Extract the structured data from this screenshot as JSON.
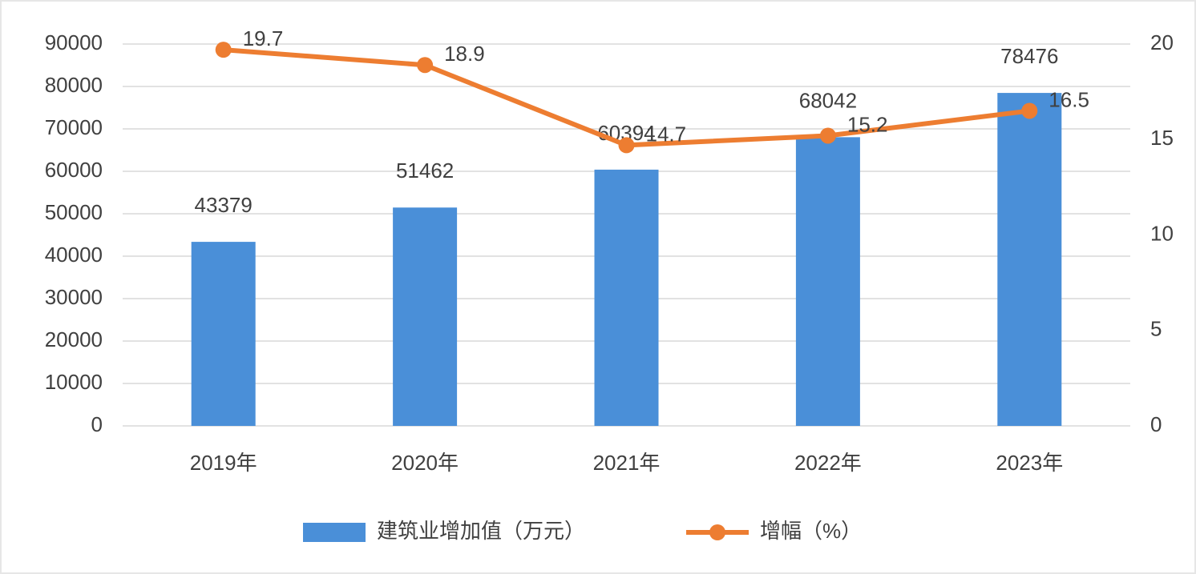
{
  "chart_data": {
    "type": "bar",
    "categories": [
      "2019年",
      "2020年",
      "2021年",
      "2022年",
      "2023年"
    ],
    "series": [
      {
        "name": "建筑业增加值（万元）",
        "color": "#4a8fd8",
        "values": [
          43379,
          51462,
          60394,
          68042,
          78476
        ]
      },
      {
        "name": "增幅（%）",
        "color": "#ed7d31",
        "type": "line",
        "axis": "y2",
        "values": [
          19.7,
          18.9,
          14.7,
          15.2,
          16.5
        ]
      }
    ],
    "ylim": [
      0,
      90000
    ],
    "yticks": [
      0,
      10000,
      20000,
      30000,
      40000,
      50000,
      60000,
      70000,
      80000,
      90000
    ],
    "y2lim": [
      0,
      20
    ],
    "y2ticks": [
      0,
      5,
      10,
      15,
      20
    ],
    "grid": true,
    "legend": "bottom"
  }
}
